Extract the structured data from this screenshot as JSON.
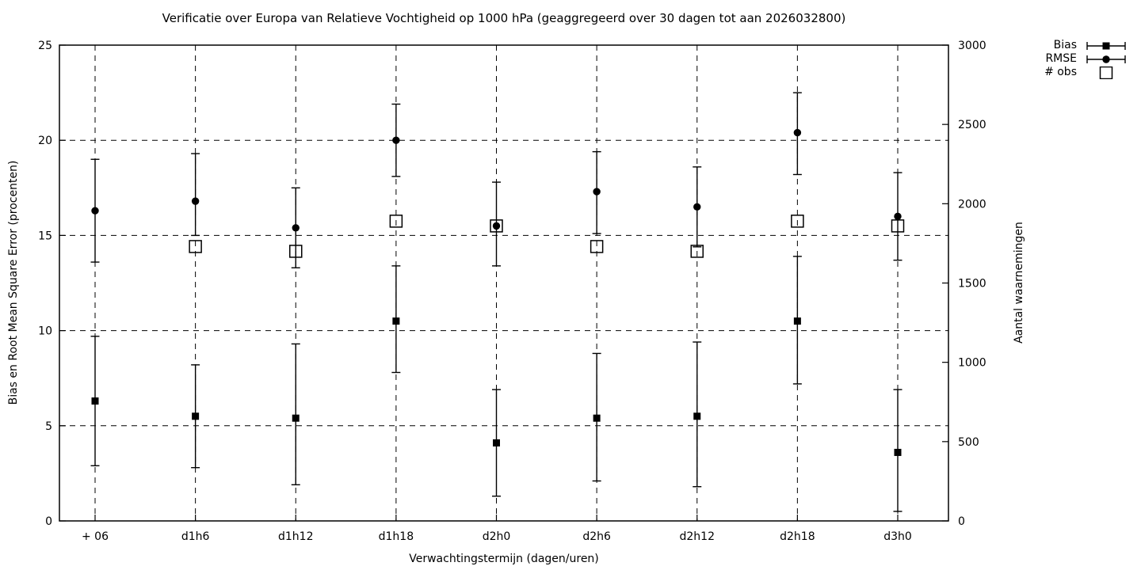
{
  "colors": {
    "foreground": "#000000",
    "background": "#ffffff"
  },
  "chart_data": {
    "type": "scatter",
    "title": "Verificatie over Europa van Relatieve Vochtigheid op 1000 hPa (geaggregeerd over 30 dagen tot aan 2026032800)",
    "xlabel": "Verwachtingstermijn (dagen/uren)",
    "ylabel_left": "Bias en Root Mean Square Error (procenten)",
    "ylabel_right": "Aantal waarnemingen",
    "categories": [
      "+ 06",
      "d1h6",
      "d1h12",
      "d1h18",
      "d2h0",
      "d2h6",
      "d2h12",
      "d2h18",
      "d3h0"
    ],
    "ylim_left": [
      0,
      25
    ],
    "yticks_left": [
      0,
      5,
      10,
      15,
      20,
      25
    ],
    "ylim_right": [
      0,
      3000
    ],
    "yticks_right": [
      0,
      500,
      1000,
      1500,
      2000,
      2500,
      3000
    ],
    "grid": true,
    "legend": {
      "position": "top-right-outside",
      "entries": [
        "Bias",
        "RMSE",
        "# obs"
      ]
    },
    "series": [
      {
        "name": "Bias",
        "axis": "left",
        "marker": "filled-square",
        "values": [
          6.3,
          5.5,
          5.4,
          10.5,
          4.1,
          5.4,
          5.5,
          10.5,
          3.6
        ],
        "err_low": [
          2.9,
          2.8,
          1.9,
          7.8,
          1.3,
          2.1,
          1.8,
          7.2,
          0.5
        ],
        "err_high": [
          9.7,
          8.2,
          9.3,
          13.4,
          6.9,
          8.8,
          9.4,
          13.9,
          6.9
        ]
      },
      {
        "name": "RMSE",
        "axis": "left",
        "marker": "filled-circle",
        "values": [
          16.3,
          16.8,
          15.4,
          20.0,
          15.5,
          17.3,
          16.5,
          20.4,
          16.0
        ],
        "err_low": [
          13.6,
          15.0,
          13.3,
          18.1,
          13.4,
          15.1,
          14.4,
          18.2,
          13.7
        ],
        "err_high": [
          19.0,
          19.3,
          17.5,
          21.9,
          17.8,
          19.4,
          18.6,
          22.5,
          18.3
        ]
      },
      {
        "name": "# obs",
        "axis": "right",
        "marker": "open-square",
        "values": [
          null,
          1730,
          1700,
          1890,
          1860,
          1730,
          1700,
          1890,
          1860
        ]
      }
    ]
  }
}
